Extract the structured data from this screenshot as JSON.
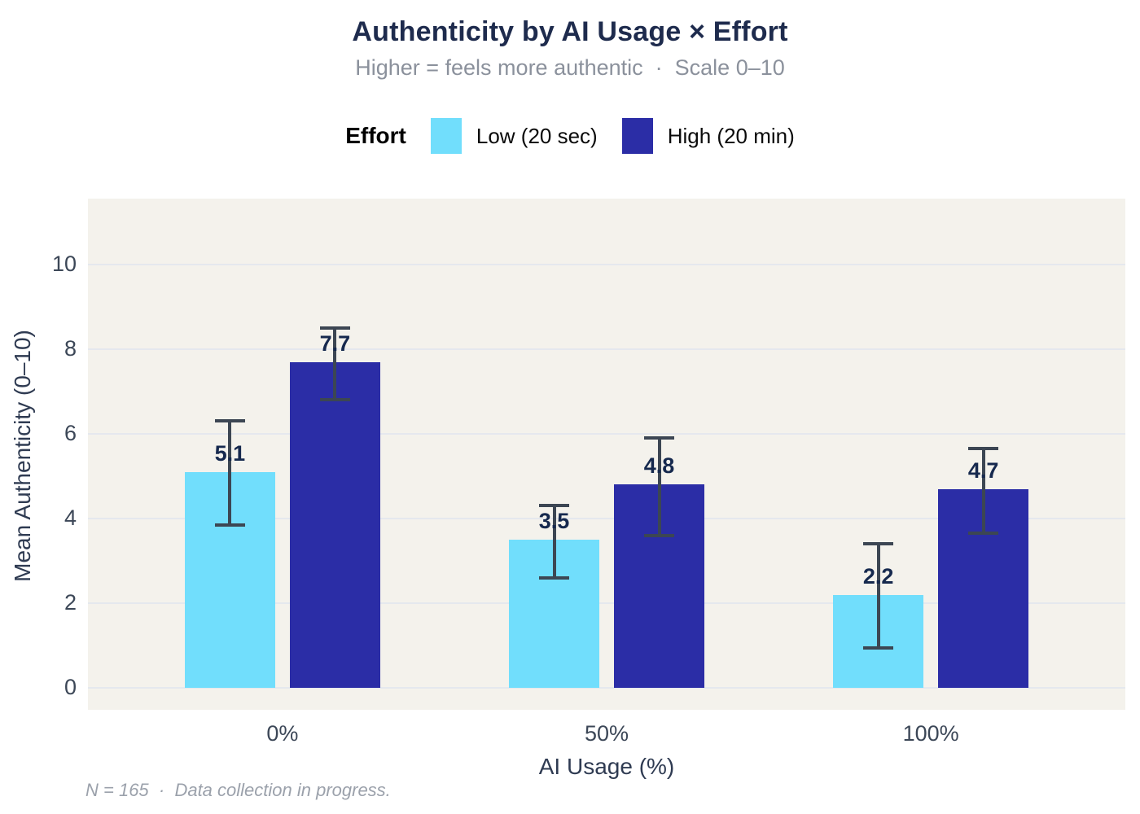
{
  "title": "Authenticity by AI Usage × Effort",
  "subtitle": "Higher = feels more authentic  ·  Scale 0–10",
  "caption": "N = 165  ·  Data collection in progress.",
  "legend": {
    "title": "Effort",
    "items": [
      {
        "label": "Low (20 sec)",
        "color": "#71defc"
      },
      {
        "label": "High (20 min)",
        "color": "#2b2da6"
      }
    ]
  },
  "axes": {
    "xlabel": "AI Usage (%)",
    "ylabel": "Mean Authenticity (0–10)"
  },
  "chart_data": {
    "type": "bar",
    "title": "Authenticity by AI Usage × Effort",
    "subtitle": "Higher = feels more authentic · Scale 0–10",
    "caption": "N = 165 · Data collection in progress.",
    "categories": [
      "0%",
      "50%",
      "100%"
    ],
    "series": [
      {
        "name": "Low (20 sec)",
        "color": "#71defc",
        "values": [
          5.1,
          3.5,
          2.2
        ],
        "ci_low": [
          3.85,
          2.6,
          0.95
        ],
        "ci_high": [
          6.3,
          4.3,
          3.4
        ]
      },
      {
        "name": "High (20 min)",
        "color": "#2b2da6",
        "values": [
          7.7,
          4.8,
          4.7
        ],
        "ci_low": [
          6.8,
          3.6,
          3.65
        ],
        "ci_high": [
          8.5,
          5.9,
          5.65
        ]
      }
    ],
    "xlabel": "AI Usage (%)",
    "ylabel": "Mean Authenticity (0–10)",
    "ylim": [
      0,
      11.6
    ],
    "yticks": [
      0,
      2,
      4,
      6,
      8,
      10
    ],
    "grid": true,
    "legend_position": "top",
    "error_bars": true,
    "panel_background": "#f4f2ec",
    "gridline_color": "#e5e8ee",
    "errorbar_color": "#3c4653",
    "label_color": "#16294e"
  }
}
